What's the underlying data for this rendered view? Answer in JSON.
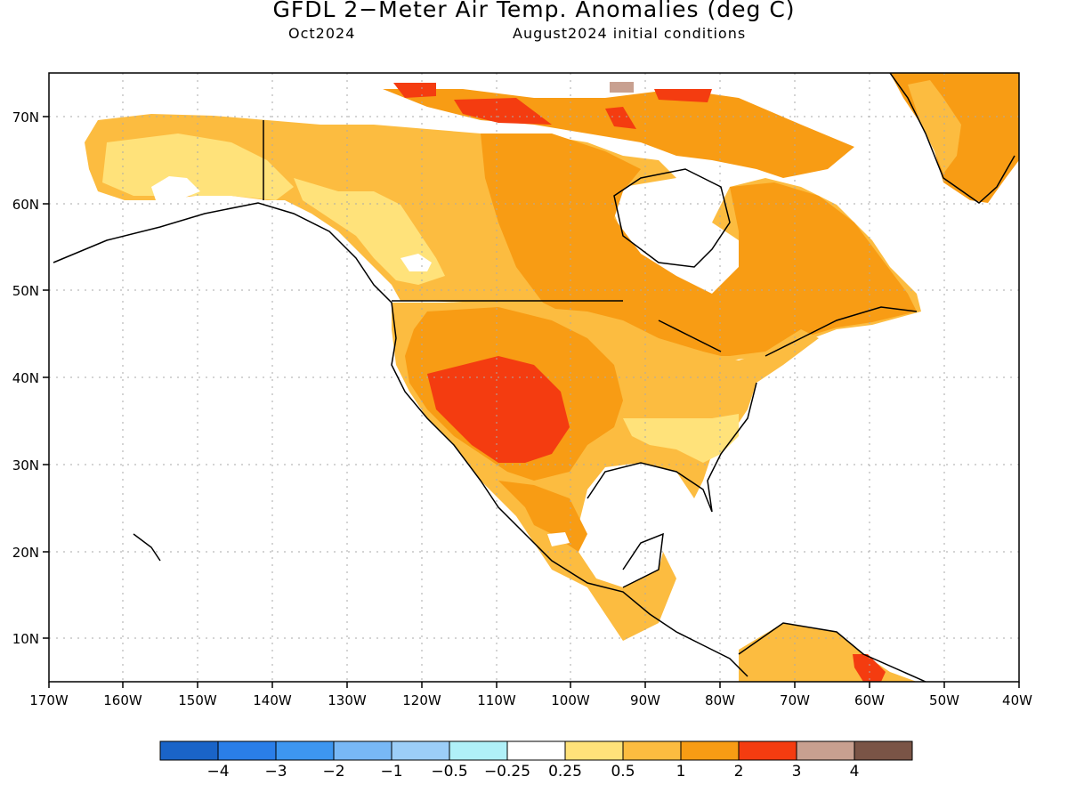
{
  "title": "GFDL 2−Meter Air Temp. Anomalies (deg C)",
  "valid_month": "Oct2024",
  "initial_conditions": "August2024 initial conditions",
  "lon_labels": [
    "170W",
    "160W",
    "150W",
    "140W",
    "130W",
    "120W",
    "110W",
    "100W",
    "90W",
    "80W",
    "70W",
    "60W",
    "50W",
    "40W"
  ],
  "lat_labels": [
    "70N",
    "60N",
    "50N",
    "40N",
    "30N",
    "20N",
    "10N"
  ],
  "colorbar": {
    "colors": [
      "#1a64c8",
      "#2a7ee8",
      "#3d96f0",
      "#78b8f6",
      "#9ccef8",
      "#b0f0f8",
      "#ffffff",
      "#ffe27a",
      "#fcbc40",
      "#f89c14",
      "#f43c10",
      "#c8a090",
      "#7a5446"
    ],
    "labels": [
      "−4",
      "−3",
      "−2",
      "−1",
      "−0.5",
      "−0.25",
      "0.25",
      "0.5",
      "1",
      "2",
      "3",
      "4"
    ]
  }
}
